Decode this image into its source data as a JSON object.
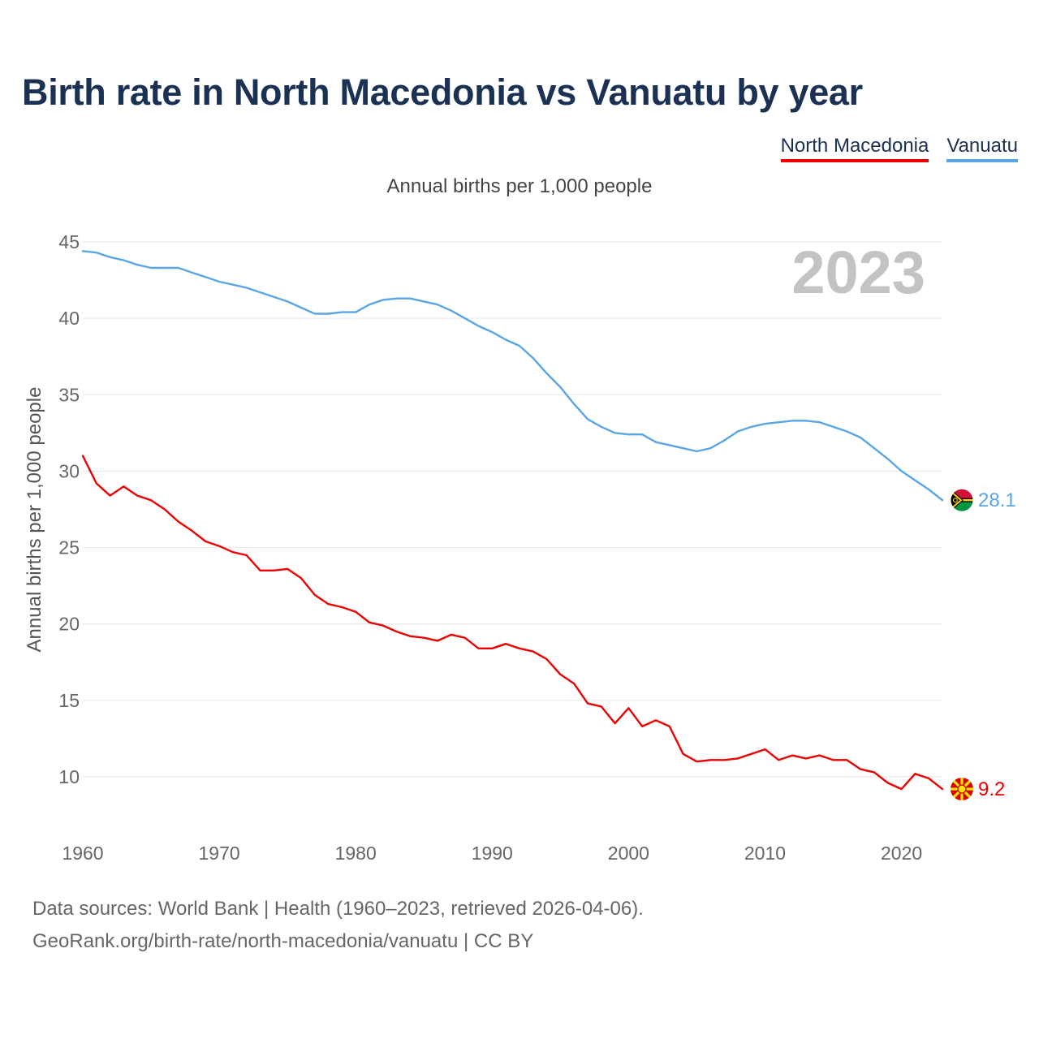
{
  "title": "Birth rate in North Macedonia vs Vanuatu by year",
  "legend": {
    "north_macedonia": "North Macedonia",
    "vanuatu": "Vanuatu"
  },
  "subtitle": "Annual births per 1,000 people",
  "footer": {
    "sources": "Data sources: World Bank | Health (1960–2023, retrieved 2026-04-06).",
    "credit": "GeoRank.org/birth-rate/north-macedonia/vanuatu | CC BY"
  },
  "colors": {
    "north_macedonia": "#ee0000",
    "vanuatu": "#5aa5e6",
    "title": "#1b3153",
    "grid": "#e6e6e6"
  },
  "chart_data": {
    "type": "line",
    "title": "Birth rate in North Macedonia vs Vanuatu by year",
    "subtitle": "Annual births per 1,000 people",
    "xlabel": "",
    "ylabel": "Annual births per 1,000 people",
    "year_label": "2023",
    "xlim": [
      1960,
      2023
    ],
    "ylim": [
      7,
      46
    ],
    "xticks": [
      1960,
      1970,
      1980,
      1990,
      2000,
      2010,
      2020
    ],
    "yticks": [
      10,
      15,
      20,
      25,
      30,
      35,
      40,
      45
    ],
    "grid": true,
    "legend_position": "top-right",
    "x": [
      1960,
      1961,
      1962,
      1963,
      1964,
      1965,
      1966,
      1967,
      1968,
      1969,
      1970,
      1971,
      1972,
      1973,
      1974,
      1975,
      1976,
      1977,
      1978,
      1979,
      1980,
      1981,
      1982,
      1983,
      1984,
      1985,
      1986,
      1987,
      1988,
      1989,
      1990,
      1991,
      1992,
      1993,
      1994,
      1995,
      1996,
      1997,
      1998,
      1999,
      2000,
      2001,
      2002,
      2003,
      2004,
      2005,
      2006,
      2007,
      2008,
      2009,
      2010,
      2011,
      2012,
      2013,
      2014,
      2015,
      2016,
      2017,
      2018,
      2019,
      2020,
      2021,
      2022,
      2023
    ],
    "series": [
      {
        "name": "Vanuatu",
        "color": "#5aa5e6",
        "end_label": "28.1",
        "values": [
          44.4,
          44.3,
          44.0,
          43.8,
          43.5,
          43.3,
          43.3,
          43.3,
          43.0,
          42.7,
          42.4,
          42.2,
          42.0,
          41.7,
          41.4,
          41.1,
          40.7,
          40.3,
          40.3,
          40.4,
          40.4,
          40.9,
          41.2,
          41.3,
          41.3,
          41.1,
          40.9,
          40.5,
          40.0,
          39.5,
          39.1,
          38.6,
          38.2,
          37.4,
          36.4,
          35.5,
          34.4,
          33.4,
          32.9,
          32.5,
          32.4,
          32.4,
          31.9,
          31.7,
          31.5,
          31.3,
          31.5,
          32.0,
          32.6,
          32.9,
          33.1,
          33.2,
          33.3,
          33.3,
          33.2,
          32.9,
          32.6,
          32.2,
          31.5,
          30.8,
          30.0,
          29.4,
          28.8,
          28.1
        ]
      },
      {
        "name": "North Macedonia",
        "color": "#ee0000",
        "end_label": "9.2",
        "values": [
          31.0,
          29.2,
          28.4,
          29.0,
          28.4,
          28.1,
          27.5,
          26.7,
          26.1,
          25.4,
          25.1,
          24.7,
          24.5,
          23.5,
          23.5,
          23.6,
          23.0,
          21.9,
          21.3,
          21.1,
          20.8,
          20.1,
          19.9,
          19.5,
          19.2,
          19.1,
          18.9,
          19.3,
          19.1,
          18.4,
          18.4,
          18.7,
          18.4,
          18.2,
          17.7,
          16.7,
          16.1,
          14.8,
          14.6,
          13.5,
          14.5,
          13.3,
          13.7,
          13.3,
          11.5,
          11.0,
          11.1,
          11.1,
          11.2,
          11.5,
          11.8,
          11.1,
          11.4,
          11.2,
          11.4,
          11.1,
          11.1,
          10.5,
          10.3,
          9.6,
          9.2,
          10.2,
          9.9,
          9.2
        ]
      }
    ]
  }
}
